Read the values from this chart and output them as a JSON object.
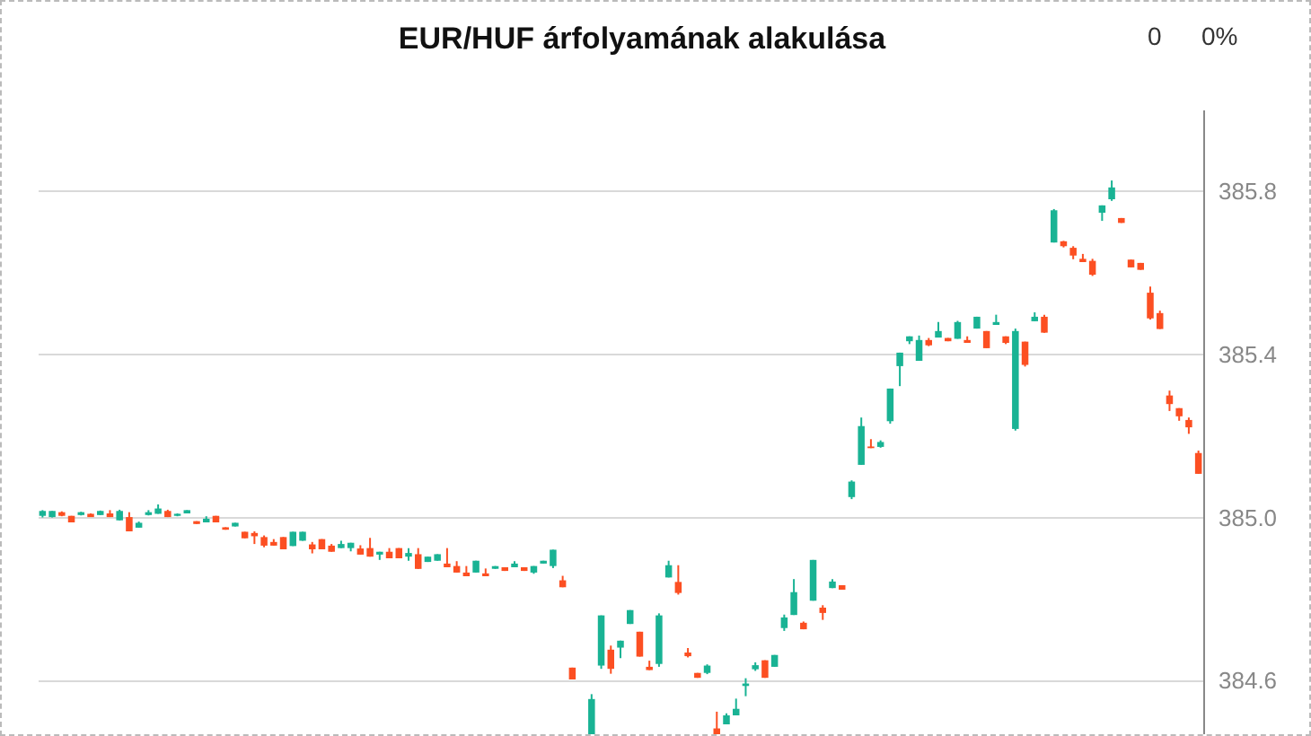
{
  "chart_data": {
    "type": "candlestick",
    "title": "EUR/HUF árfolyamának alakulása",
    "annotations": [
      "0",
      "0%"
    ],
    "categories": [
      null,
      null,
      null,
      null,
      null,
      null,
      null,
      null,
      null,
      null,
      null,
      null,
      null,
      null,
      null,
      null,
      null,
      null,
      null,
      null,
      null,
      null,
      null,
      null,
      null,
      null,
      null,
      null,
      null,
      null,
      null,
      null,
      null,
      null,
      null,
      null,
      null,
      null,
      null,
      null,
      null,
      null,
      null,
      null,
      null,
      null,
      null,
      null,
      null,
      null,
      null,
      null,
      null,
      null,
      null,
      null,
      null,
      null,
      null,
      null,
      null,
      null,
      null,
      null,
      null,
      null,
      null,
      null,
      null,
      null,
      null,
      null,
      null,
      null,
      null,
      null,
      null,
      null,
      null,
      null,
      null,
      null,
      null,
      null,
      null,
      null,
      null,
      null,
      null,
      null,
      null,
      null,
      null,
      null,
      null,
      null,
      null,
      null,
      null,
      null,
      null,
      null,
      null,
      null,
      null,
      null,
      null,
      null,
      null,
      null,
      null,
      null,
      null,
      null,
      null,
      null,
      null,
      null,
      null,
      null,
      null
    ],
    "ohlc": [
      [
        385.004,
        385.018,
        385.0,
        385.016
      ],
      [
        385.001,
        385.016,
        385.0,
        385.016
      ],
      [
        385.013,
        385.015,
        385.003,
        385.004
      ],
      [
        385.004,
        385.004,
        384.988,
        384.988
      ],
      [
        385.006,
        385.014,
        385.005,
        385.013
      ],
      [
        385.009,
        385.01,
        385.001,
        385.001
      ],
      [
        385.006,
        385.017,
        385.006,
        385.016
      ],
      [
        385.01,
        385.018,
        385.001,
        385.001
      ],
      [
        384.993,
        385.019,
        384.993,
        385.016
      ],
      [
        385.001,
        385.013,
        384.966,
        384.966
      ],
      [
        384.975,
        384.99,
        384.975,
        384.987
      ],
      [
        385.006,
        385.018,
        385.005,
        385.013
      ],
      [
        385.009,
        385.032,
        385.009,
        385.022
      ],
      [
        385.016,
        385.019,
        385.001,
        385.001
      ],
      [
        385.004,
        385.01,
        385.003,
        385.009
      ],
      [
        385.01,
        385.018,
        385.01,
        385.018
      ],
      [
        384.991,
        384.991,
        384.984,
        384.984
      ],
      [
        384.988,
        385.003,
        384.988,
        384.997
      ],
      [
        385.004,
        385.004,
        384.988,
        384.988
      ],
      [
        384.976,
        384.976,
        384.97,
        384.97
      ],
      [
        384.978,
        384.987,
        384.978,
        384.987
      ],
      [
        384.965,
        384.965,
        384.949,
        384.949
      ],
      [
        384.962,
        384.966,
        384.935,
        384.954
      ],
      [
        384.952,
        384.956,
        384.927,
        384.931
      ],
      [
        384.94,
        384.947,
        384.931,
        384.931
      ],
      [
        384.952,
        384.952,
        384.922,
        384.922
      ],
      [
        384.93,
        384.965,
        384.93,
        384.965
      ],
      [
        384.943,
        384.965,
        384.943,
        384.965
      ],
      [
        384.934,
        384.94,
        384.912,
        384.922
      ],
      [
        384.947,
        384.947,
        384.922,
        384.922
      ],
      [
        384.931,
        384.935,
        384.916,
        384.916
      ],
      [
        384.925,
        384.943,
        384.925,
        384.935
      ],
      [
        384.925,
        384.938,
        384.917,
        384.938
      ],
      [
        384.924,
        384.932,
        384.909,
        384.909
      ],
      [
        384.925,
        384.95,
        384.904,
        384.904
      ],
      [
        384.909,
        384.916,
        384.896,
        384.916
      ],
      [
        384.916,
        384.925,
        384.9,
        384.9
      ],
      [
        384.925,
        384.925,
        384.9,
        384.9
      ],
      [
        384.904,
        384.925,
        384.894,
        384.913
      ],
      [
        384.91,
        384.925,
        384.874,
        384.874
      ],
      [
        384.891,
        384.904,
        384.891,
        384.904
      ],
      [
        384.894,
        384.91,
        384.894,
        384.91
      ],
      [
        384.887,
        384.925,
        384.878,
        384.878
      ],
      [
        384.881,
        384.893,
        384.865,
        384.865
      ],
      [
        384.865,
        384.881,
        384.856,
        384.856
      ],
      [
        384.865,
        384.894,
        384.865,
        384.894
      ],
      [
        384.863,
        384.875,
        384.856,
        384.856
      ],
      [
        384.874,
        384.881,
        384.874,
        384.881
      ],
      [
        384.878,
        384.878,
        384.869,
        384.869
      ],
      [
        384.878,
        384.893,
        384.878,
        384.887
      ],
      [
        384.878,
        384.878,
        384.869,
        384.869
      ],
      [
        384.865,
        384.881,
        384.862,
        384.881
      ],
      [
        384.887,
        384.894,
        384.887,
        384.894
      ],
      [
        384.881,
        384.921,
        384.876,
        384.921
      ],
      [
        384.846,
        384.857,
        384.829,
        384.829
      ],
      [
        384.632,
        384.632,
        384.603,
        384.603
      ],
      null,
      [
        384.465,
        384.567,
        384.462,
        384.555
      ],
      [
        384.637,
        384.76,
        384.629,
        384.76
      ],
      [
        384.676,
        384.686,
        384.617,
        384.629
      ],
      [
        384.681,
        384.698,
        384.655,
        384.698
      ],
      [
        384.739,
        384.773,
        384.739,
        384.773
      ],
      [
        384.72,
        384.72,
        384.659,
        384.659
      ],
      [
        384.634,
        384.649,
        384.626,
        384.626
      ],
      [
        384.641,
        384.765,
        384.634,
        384.76
      ],
      [
        384.853,
        384.894,
        384.853,
        384.883
      ],
      [
        384.842,
        384.883,
        384.811,
        384.815
      ],
      [
        384.669,
        384.68,
        384.657,
        384.66
      ],
      [
        384.619,
        384.619,
        384.607,
        384.607
      ],
      [
        384.619,
        384.64,
        384.616,
        384.637
      ],
      [
        384.483,
        384.524,
        384.461,
        384.461
      ],
      [
        384.493,
        384.52,
        384.493,
        384.515
      ],
      [
        384.515,
        384.556,
        384.515,
        384.531
      ],
      [
        384.587,
        384.606,
        384.562,
        384.593
      ],
      [
        384.628,
        384.645,
        384.624,
        384.638
      ],
      [
        384.65,
        384.65,
        384.607,
        384.607
      ],
      [
        384.634,
        384.663,
        384.634,
        384.663
      ],
      [
        384.729,
        384.762,
        384.722,
        384.755
      ],
      [
        384.761,
        384.849,
        384.761,
        384.817
      ],
      [
        384.742,
        384.745,
        384.726,
        384.726
      ],
      [
        384.796,
        384.896,
        384.796,
        384.896
      ],
      [
        384.779,
        384.785,
        384.749,
        384.766
      ],
      [
        384.827,
        384.849,
        384.827,
        384.843
      ],
      [
        384.834,
        384.834,
        384.823,
        384.823
      ],
      [
        385.05,
        385.091,
        385.045,
        385.088
      ],
      [
        385.129,
        385.245,
        385.129,
        385.224
      ],
      [
        385.174,
        385.192,
        385.17,
        385.17
      ],
      [
        385.173,
        385.189,
        385.171,
        385.185
      ],
      [
        385.236,
        385.316,
        385.23,
        385.316
      ],
      [
        385.371,
        385.404,
        385.322,
        385.404
      ],
      [
        385.432,
        385.444,
        385.425,
        385.444
      ],
      [
        385.384,
        385.446,
        385.384,
        385.435
      ],
      [
        385.435,
        385.44,
        385.42,
        385.422
      ],
      [
        385.441,
        385.479,
        385.441,
        385.457
      ],
      [
        385.44,
        385.44,
        385.432,
        385.432
      ],
      [
        385.438,
        385.482,
        385.438,
        385.479
      ],
      [
        385.435,
        385.444,
        385.428,
        385.428
      ],
      [
        385.463,
        385.492,
        385.463,
        385.492
      ],
      [
        385.457,
        385.457,
        385.415,
        385.415
      ],
      [
        385.472,
        385.497,
        385.472,
        385.479
      ],
      [
        385.444,
        385.444,
        385.425,
        385.428
      ],
      [
        385.217,
        385.463,
        385.213,
        385.457
      ],
      [
        385.431,
        385.431,
        385.37,
        385.374
      ],
      [
        385.481,
        385.503,
        385.481,
        385.492
      ],
      [
        385.492,
        385.497,
        385.453,
        385.453
      ],
      [
        385.674,
        385.756,
        385.674,
        385.753
      ],
      [
        385.677,
        385.678,
        385.662,
        385.665
      ],
      [
        385.661,
        385.665,
        385.633,
        385.642
      ],
      [
        385.634,
        385.646,
        385.626,
        385.626
      ],
      [
        385.629,
        385.634,
        385.592,
        385.595
      ],
      [
        385.747,
        385.765,
        385.727,
        385.765
      ],
      [
        385.78,
        385.826,
        385.776,
        385.809
      ],
      [
        385.734,
        385.734,
        385.722,
        385.722
      ],
      [
        385.632,
        385.632,
        385.613,
        385.613
      ],
      [
        385.624,
        385.624,
        385.607,
        385.607
      ],
      [
        385.551,
        385.566,
        385.485,
        385.488
      ],
      [
        385.501,
        385.507,
        385.462,
        385.462
      ],
      [
        385.299,
        385.311,
        385.261,
        385.278
      ],
      [
        385.268,
        385.268,
        385.237,
        385.248
      ],
      [
        385.239,
        385.245,
        385.205,
        385.221
      ],
      [
        385.158,
        385.164,
        385.107,
        385.107
      ]
    ],
    "ylim": [
      384.46,
      386.0
    ],
    "yticks": [
      384.6,
      {
        "value": 385.0,
        "label": "385.0"
      },
      385.4,
      385.8
    ],
    "grid": "y",
    "tick_labels": "y"
  }
}
